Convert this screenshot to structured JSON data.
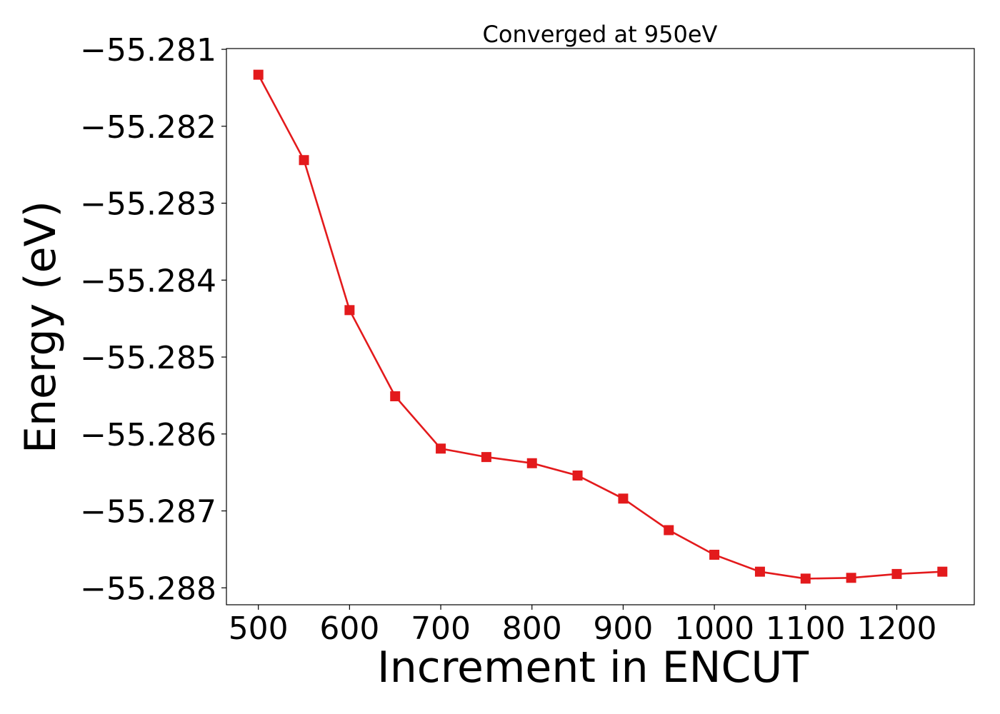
{
  "chart_data": {
    "type": "line",
    "title": "Converged at 950eV",
    "xlabel": "Increment in ENCUT",
    "ylabel": "Energy (eV)",
    "xlim": [
      465,
      1285
    ],
    "ylim": [
      -55.28822,
      -55.28099
    ],
    "x_ticks": [
      500,
      600,
      700,
      800,
      900,
      1000,
      1100,
      1200
    ],
    "x_tick_labels": [
      "500",
      "600",
      "700",
      "800",
      "900",
      "1000",
      "1100",
      "1200"
    ],
    "y_ticks": [
      -55.281,
      -55.282,
      -55.283,
      -55.284,
      -55.285,
      -55.286,
      -55.287,
      -55.288
    ],
    "y_tick_labels": [
      "−55.281",
      "−55.282",
      "−55.283",
      "−55.284",
      "−55.285",
      "−55.286",
      "−55.287",
      "−55.288"
    ],
    "grid": false,
    "series": [
      {
        "color": "#e31a1c",
        "marker": "square",
        "x": [
          500,
          550,
          600,
          650,
          700,
          750,
          800,
          850,
          900,
          950,
          1000,
          1050,
          1100,
          1150,
          1200,
          1250
        ],
        "y": [
          -55.28133,
          -55.28244,
          -55.28439,
          -55.28551,
          -55.28619,
          -55.2863,
          -55.28638,
          -55.28654,
          -55.28684,
          -55.28725,
          -55.28757,
          -55.28779,
          -55.28788,
          -55.28787,
          -55.28782,
          -55.28779
        ]
      }
    ]
  }
}
